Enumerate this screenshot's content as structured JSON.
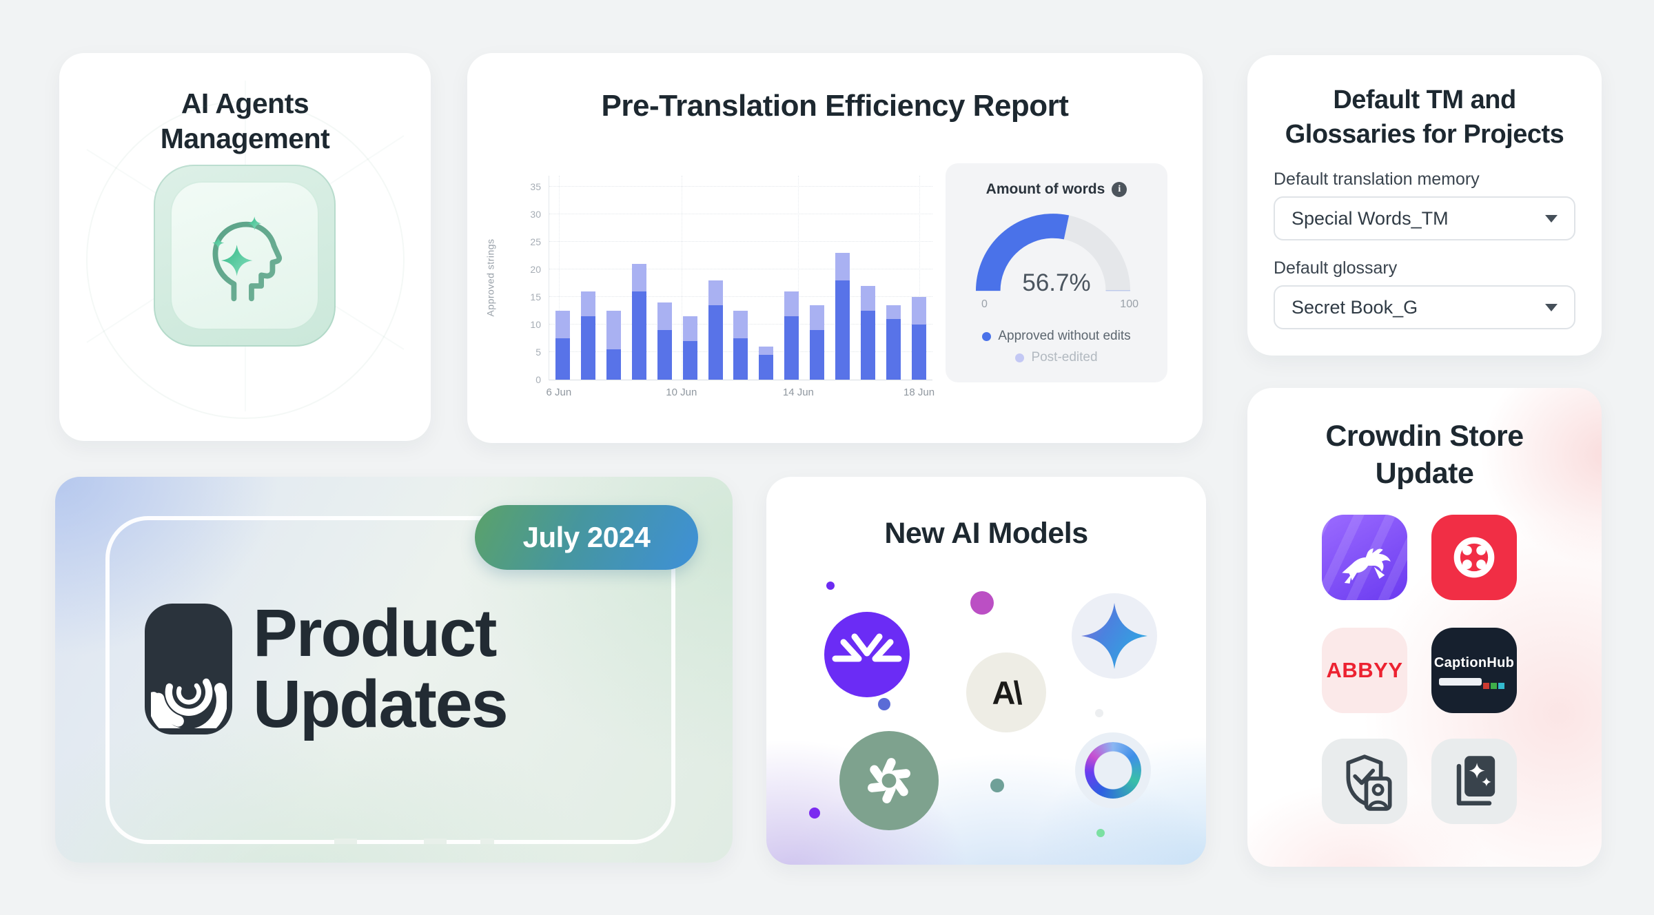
{
  "page": {
    "background": "#F1F3F4"
  },
  "ai_agents_card": {
    "title_line1": "AI Agents",
    "title_line2": "Management",
    "icon": "ai-head-sparkles-icon"
  },
  "report_card": {
    "title": "Pre-Translation Efficiency Report"
  },
  "tm_card": {
    "title": "Default TM and Glossaries for Projects",
    "tm_label": "Default translation memory",
    "tm_value": "Special Words_TM",
    "glossary_label": "Default glossary",
    "glossary_value": "Secret Book_G"
  },
  "product_card": {
    "badge_label": "July 2024",
    "title_line1": "Product",
    "title_line2": "Updates",
    "logo": "crowdin-logo"
  },
  "models_card": {
    "title": "New AI Models",
    "anthropic_glyph": "A\\",
    "logos": [
      "converging-arrows-logo",
      "gemini-star-logo",
      "anthropic-logo",
      "openai-logo",
      "gradient-ring-logo"
    ]
  },
  "store_card": {
    "title_line1": "Crowdin Store",
    "title_line2": "Update",
    "abbyy_label": "ABBYY",
    "captionhub_label": "CaptionHub",
    "apps": [
      "rabbit-app",
      "twilio-app",
      "abbyy-app",
      "captionhub-app",
      "photo-shield-app",
      "ai-document-app"
    ]
  },
  "chart_data": [
    {
      "type": "bar",
      "stacked": true,
      "title": "Pre-Translation Efficiency Report",
      "xlabel": "",
      "ylabel": "Approved strings",
      "ylim": [
        0,
        37
      ],
      "y_ticks": [
        0,
        5,
        10,
        15,
        20,
        25,
        30,
        35
      ],
      "x_tick_labels": [
        "6 Jun",
        "10 Jun",
        "14 Jun",
        "18 Jun"
      ],
      "x_tick_positions_pct": [
        2.5,
        34.5,
        65,
        96.5
      ],
      "grid": "dotted",
      "legend_position": "right-panel",
      "series": [
        {
          "name": "Approved without edits",
          "color": "#5873E8",
          "values": [
            7.5,
            11.5,
            5.5,
            16,
            9,
            7,
            13.5,
            7.5,
            4.5,
            11.5,
            9,
            18,
            12.5,
            11,
            10
          ]
        },
        {
          "name": "Post-edited",
          "color": "#A9B1F2",
          "values": [
            5,
            4.5,
            7,
            5,
            5,
            4.5,
            4.5,
            5,
            1.5,
            4.5,
            4.5,
            5,
            4.5,
            2.5,
            5
          ]
        }
      ]
    },
    {
      "type": "gauge",
      "title": "Amount of words",
      "value": 56.7,
      "value_label": "56.7%",
      "min_label": "0",
      "max_label": "100",
      "color": "#4A72E9",
      "track_color": "#E5E7EA",
      "legend": [
        {
          "label": "Approved without edits",
          "color": "#4A72E9"
        },
        {
          "label": "Post-edited",
          "color": "#C3C8F4"
        }
      ]
    }
  ]
}
